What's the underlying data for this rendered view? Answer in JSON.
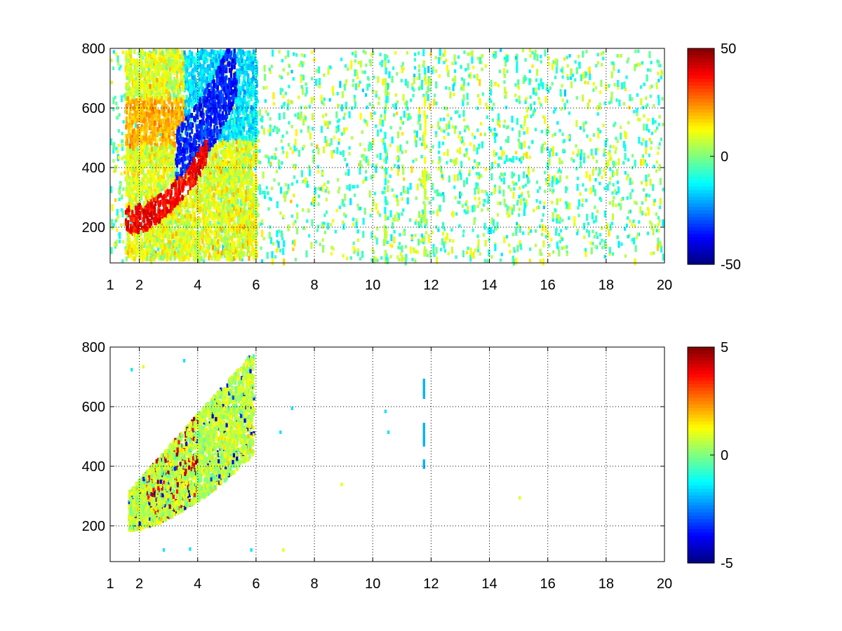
{
  "chart_data": [
    {
      "type": "heatmap",
      "title": "",
      "xlabel": "",
      "ylabel": "",
      "xlim": [
        1,
        20
      ],
      "ylim": [
        80,
        800
      ],
      "x_ticks": [
        1,
        2,
        4,
        6,
        8,
        10,
        12,
        14,
        16,
        18,
        20
      ],
      "y_ticks": [
        200,
        400,
        600,
        800
      ],
      "grid": true,
      "colormap": "jet",
      "colorbar": {
        "range": [
          -50,
          50
        ],
        "ticks": [
          50,
          0,
          -50
        ]
      },
      "features": [
        {
          "description": "red band",
          "x": [
            1.5,
            4.2
          ],
          "y": [
            230,
            360
          ],
          "value": 40
        },
        {
          "description": "blue band",
          "x": [
            3.2,
            5.2
          ],
          "y": [
            220,
            500
          ],
          "value": -40
        },
        {
          "description": "yellow stripe",
          "x": [
            11.75
          ],
          "y": [
            340,
            720
          ],
          "value": 12
        }
      ],
      "x_label_text": [
        "1",
        "2",
        "4",
        "6",
        "8",
        "10",
        "12",
        "14",
        "16",
        "18",
        "20"
      ],
      "y_label_text": [
        "200",
        "400",
        "600",
        "800"
      ],
      "colorbar_label_text": [
        "50",
        "0",
        "-50"
      ]
    },
    {
      "type": "heatmap",
      "title": "",
      "xlabel": "",
      "ylabel": "",
      "xlim": [
        1,
        20
      ],
      "ylim": [
        80,
        800
      ],
      "x_ticks": [
        1,
        2,
        4,
        6,
        8,
        10,
        12,
        14,
        16,
        18,
        20
      ],
      "y_ticks": [
        200,
        400,
        600,
        800
      ],
      "grid": true,
      "colormap": "jet",
      "colorbar": {
        "range": [
          -5,
          5
        ],
        "ticks": [
          5,
          0,
          -5
        ]
      },
      "features": [
        {
          "description": "dense patch",
          "x": [
            1.6,
            5.9
          ],
          "y": [
            190,
            780
          ],
          "value": 0.5
        },
        {
          "description": "red streaks",
          "x": [
            2.2,
            4.0
          ],
          "y": [
            260,
            760
          ],
          "value": 5
        },
        {
          "description": "cyan segments",
          "x": [
            11.75
          ],
          "y": [
            400,
            700
          ],
          "value": -2
        }
      ],
      "x_label_text": [
        "1",
        "2",
        "4",
        "6",
        "8",
        "10",
        "12",
        "14",
        "16",
        "18",
        "20"
      ],
      "y_label_text": [
        "200",
        "400",
        "600",
        "800"
      ],
      "colorbar_label_text": [
        "5",
        "0",
        "-5"
      ]
    }
  ]
}
